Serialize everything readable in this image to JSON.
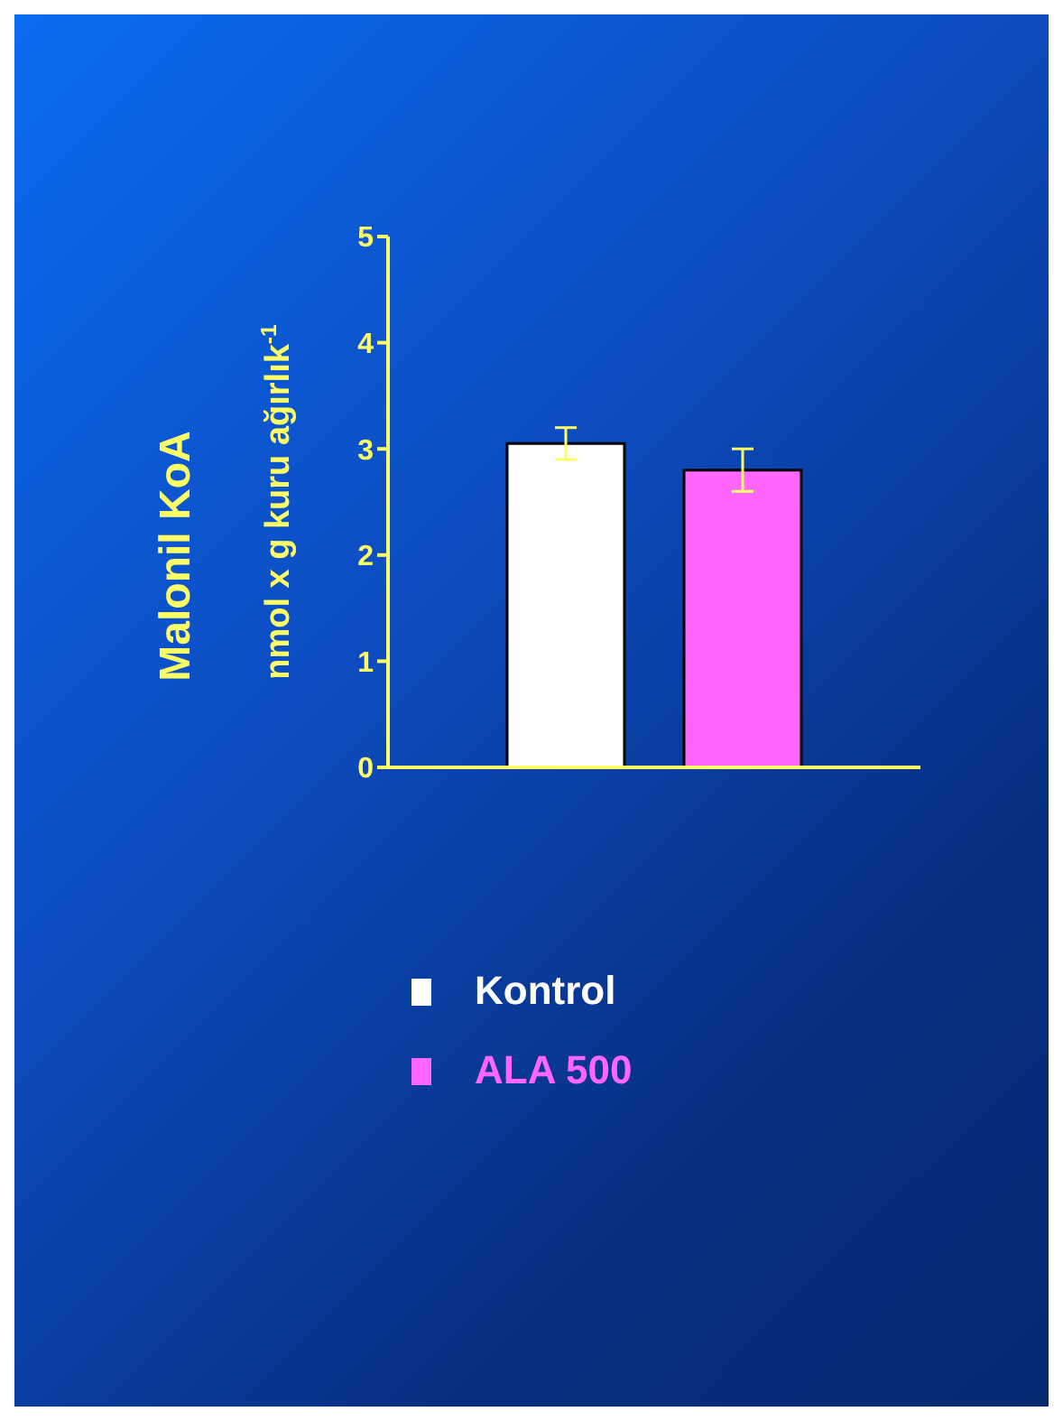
{
  "chart_data": {
    "type": "bar",
    "ylabel": "Malonil KoA\nnmol x g kuru ağırlık$^{-1}$",
    "categories": [
      null
    ],
    "series": [
      {
        "name": "Kontrol",
        "color": "#ffffff",
        "values": [
          3.05
        ],
        "errors": [
          0.15
        ]
      },
      {
        "name": "ALA 500",
        "color": "#ff66ff",
        "values": [
          2.8
        ],
        "errors": [
          0.2
        ]
      }
    ],
    "ylim": [
      0,
      5
    ],
    "yticks": [
      0,
      1,
      2,
      3,
      4,
      5
    ],
    "grid": false,
    "legend": "bottom"
  }
}
